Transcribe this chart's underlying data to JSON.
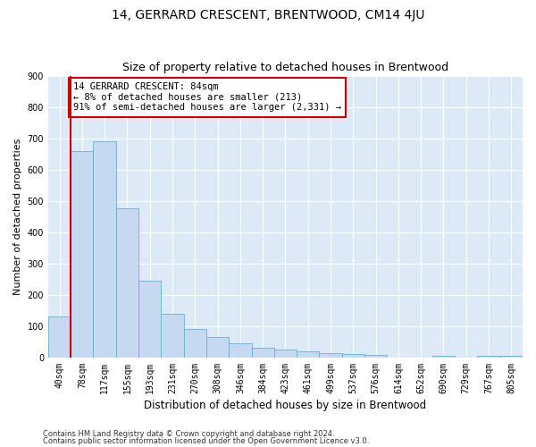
{
  "title": "14, GERRARD CRESCENT, BRENTWOOD, CM14 4JU",
  "subtitle": "Size of property relative to detached houses in Brentwood",
  "xlabel": "Distribution of detached houses by size in Brentwood",
  "ylabel": "Number of detached properties",
  "footnote1": "Contains HM Land Registry data © Crown copyright and database right 2024.",
  "footnote2": "Contains public sector information licensed under the Open Government Licence v3.0.",
  "bar_labels": [
    "40sqm",
    "78sqm",
    "117sqm",
    "155sqm",
    "193sqm",
    "231sqm",
    "270sqm",
    "308sqm",
    "346sqm",
    "384sqm",
    "423sqm",
    "461sqm",
    "499sqm",
    "537sqm",
    "576sqm",
    "614sqm",
    "652sqm",
    "690sqm",
    "729sqm",
    "767sqm",
    "805sqm"
  ],
  "bar_values": [
    130,
    660,
    690,
    475,
    245,
    140,
    90,
    65,
    45,
    30,
    25,
    20,
    15,
    10,
    8,
    0,
    0,
    5,
    0,
    5,
    5
  ],
  "bar_color": "#c5d9f0",
  "bar_edge_color": "#6baed6",
  "annotation_box_text": "14 GERRARD CRESCENT: 84sqm\n← 8% of detached houses are smaller (213)\n91% of semi-detached houses are larger (2,331) →",
  "annotation_box_color": "#ffffff",
  "annotation_box_edge_color": "#cc0000",
  "vline_color": "#cc0000",
  "ylim": [
    0,
    900
  ],
  "yticks": [
    0,
    100,
    200,
    300,
    400,
    500,
    600,
    700,
    800,
    900
  ],
  "bg_color": "#dce9f7",
  "grid_color": "#ffffff",
  "title_fontsize": 10,
  "subtitle_fontsize": 9,
  "axis_fontsize": 8,
  "tick_fontsize": 7,
  "annot_fontsize": 7.5
}
